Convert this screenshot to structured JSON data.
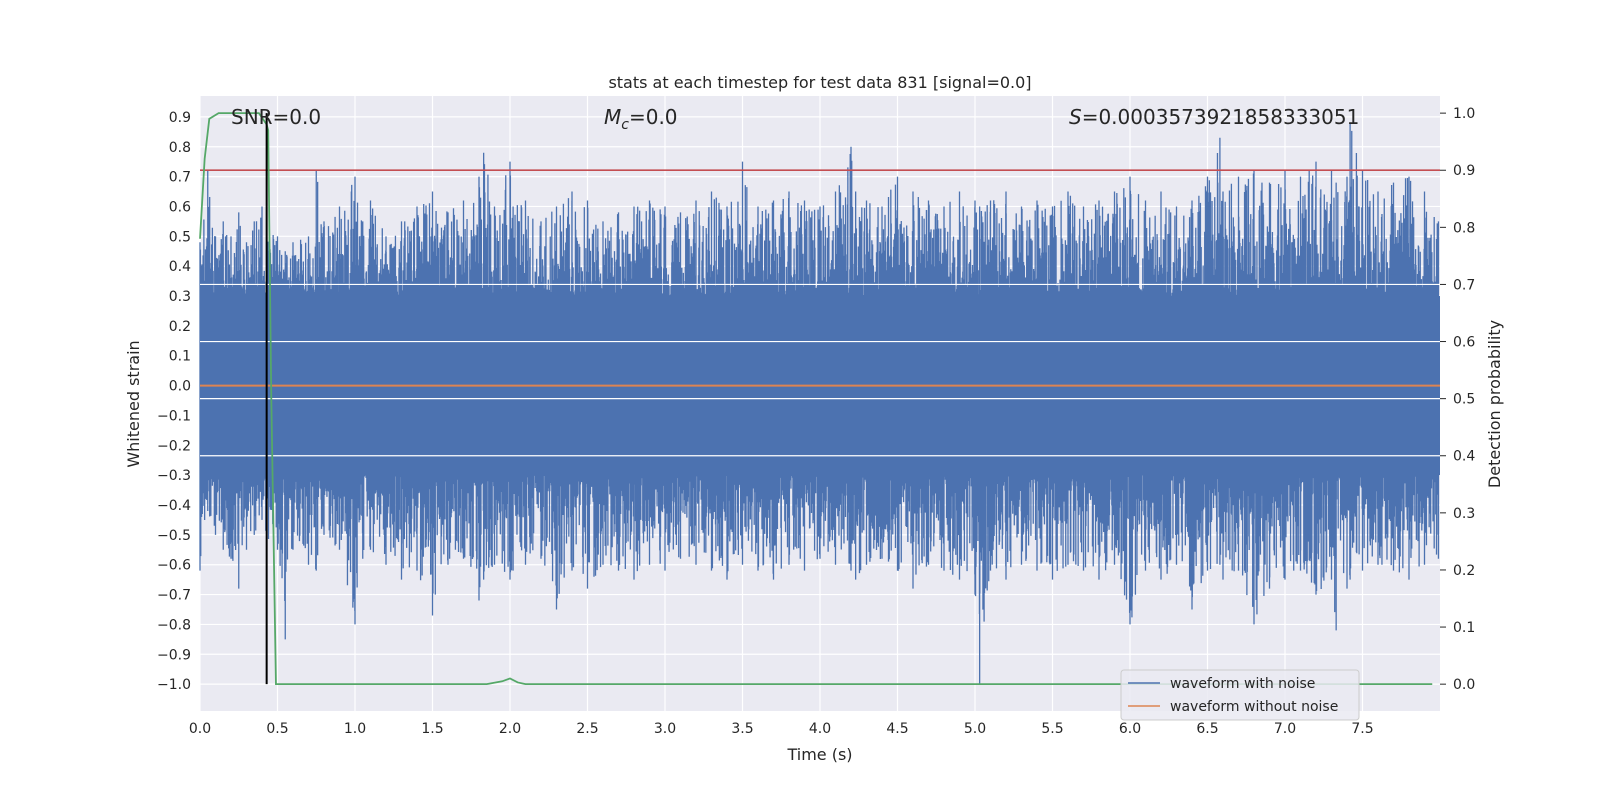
{
  "chart_data": {
    "type": "line",
    "title": "stats at each timestep for test data 831 [signal=0.0]",
    "xlabel": "Time (s)",
    "ylabel": "Whitened strain",
    "y2label": "Detection probability",
    "xlim": [
      0.0,
      8.0
    ],
    "ylim": [
      -1.09,
      0.97
    ],
    "y2lim": [
      -0.047,
      1.03
    ],
    "grid": true,
    "legend_position": "lower-right",
    "x_ticks": [
      "0.0",
      "0.5",
      "1.0",
      "1.5",
      "2.0",
      "2.5",
      "3.0",
      "3.5",
      "4.0",
      "4.5",
      "5.0",
      "5.5",
      "6.0",
      "6.5",
      "7.0",
      "7.5"
    ],
    "y_ticks": [
      "0.9",
      "0.8",
      "0.7",
      "0.6",
      "0.5",
      "0.4",
      "0.3",
      "0.2",
      "0.1",
      "0.0",
      "−0.1",
      "−0.2",
      "−0.3",
      "−0.4",
      "−0.5",
      "−0.6",
      "−0.7",
      "−0.8",
      "−0.9",
      "−1.0"
    ],
    "y2_ticks": [
      "1.0",
      "0.9",
      "0.8",
      "0.7",
      "0.6",
      "0.5",
      "0.4",
      "0.3",
      "0.2",
      "0.1",
      "0.0"
    ],
    "annotations": {
      "snr": "SNR=0.0",
      "mc_symbol": "M",
      "mc_sub": "c",
      "mc_value": "=0.0",
      "s_symbol": "S",
      "s_value": "=0.0003573921858333051"
    },
    "series": [
      {
        "name": "waveform with noise",
        "color": "#4c72b0",
        "axis": "left",
        "envelope": {
          "x": [
            0.0,
            0.05,
            0.1,
            0.15,
            0.2,
            0.25,
            0.3,
            0.35,
            0.4,
            0.43,
            0.5,
            0.55,
            0.6,
            0.7,
            0.75,
            0.8,
            0.9,
            1.0,
            1.05,
            1.1,
            1.2,
            1.3,
            1.4,
            1.5,
            1.6,
            1.7,
            1.8,
            1.83,
            1.9,
            2.0,
            2.02,
            2.1,
            2.2,
            2.3,
            2.4,
            2.5,
            2.6,
            2.7,
            2.8,
            2.9,
            3.0,
            3.1,
            3.2,
            3.3,
            3.4,
            3.5,
            3.6,
            3.7,
            3.8,
            3.9,
            4.0,
            4.1,
            4.2,
            4.23,
            4.3,
            4.4,
            4.5,
            4.6,
            4.7,
            4.8,
            4.9,
            5.0,
            5.03,
            5.1,
            5.2,
            5.3,
            5.4,
            5.5,
            5.6,
            5.7,
            5.8,
            5.9,
            6.0,
            6.1,
            6.2,
            6.3,
            6.4,
            6.5,
            6.58,
            6.6,
            6.7,
            6.8,
            6.9,
            7.0,
            7.1,
            7.2,
            7.3,
            7.33,
            7.4,
            7.42,
            7.5,
            7.6,
            7.7,
            7.8,
            7.9,
            7.99
          ],
          "y_max": [
            0.48,
            0.72,
            0.5,
            0.55,
            0.5,
            0.58,
            0.48,
            0.55,
            0.6,
            0.52,
            0.5,
            0.45,
            0.48,
            0.5,
            0.72,
            0.55,
            0.6,
            0.7,
            0.55,
            0.62,
            0.5,
            0.55,
            0.6,
            0.65,
            0.58,
            0.62,
            0.7,
            0.78,
            0.6,
            0.75,
            0.6,
            0.62,
            0.55,
            0.6,
            0.65,
            0.62,
            0.55,
            0.58,
            0.6,
            0.62,
            0.6,
            0.58,
            0.62,
            0.65,
            0.6,
            0.75,
            0.6,
            0.62,
            0.65,
            0.62,
            0.6,
            0.65,
            0.8,
            0.65,
            0.62,
            0.6,
            0.7,
            0.65,
            0.62,
            0.6,
            0.65,
            0.62,
            0.6,
            0.62,
            0.65,
            0.6,
            0.62,
            0.6,
            0.65,
            0.6,
            0.62,
            0.65,
            0.7,
            0.62,
            0.65,
            0.6,
            0.62,
            0.7,
            0.83,
            0.65,
            0.7,
            0.72,
            0.68,
            0.72,
            0.7,
            0.75,
            0.72,
            0.68,
            0.7,
            0.88,
            0.72,
            0.65,
            0.68,
            0.7,
            0.65,
            0.55
          ],
          "y_min": [
            -0.62,
            -0.42,
            -0.5,
            -0.55,
            -0.58,
            -0.68,
            -0.55,
            -0.5,
            -0.45,
            -0.52,
            -0.55,
            -0.85,
            -0.55,
            -0.6,
            -0.62,
            -0.5,
            -0.55,
            -0.8,
            -0.58,
            -0.55,
            -0.6,
            -0.65,
            -0.62,
            -0.77,
            -0.6,
            -0.58,
            -0.72,
            -0.65,
            -0.6,
            -0.65,
            -0.62,
            -0.6,
            -0.58,
            -0.75,
            -0.62,
            -0.68,
            -0.6,
            -0.62,
            -0.65,
            -0.6,
            -0.62,
            -0.58,
            -0.6,
            -0.62,
            -0.65,
            -0.6,
            -0.62,
            -0.65,
            -0.6,
            -0.62,
            -0.58,
            -0.6,
            -0.62,
            -0.65,
            -0.6,
            -0.58,
            -0.62,
            -0.68,
            -0.6,
            -0.62,
            -0.65,
            -0.7,
            -1.0,
            -0.62,
            -0.65,
            -0.6,
            -0.62,
            -0.65,
            -0.6,
            -0.62,
            -0.65,
            -0.6,
            -0.8,
            -0.62,
            -0.65,
            -0.6,
            -0.75,
            -0.62,
            -0.6,
            -0.65,
            -0.62,
            -0.8,
            -0.68,
            -0.65,
            -0.62,
            -0.7,
            -0.65,
            -0.82,
            -0.68,
            -0.65,
            -0.62,
            -0.6,
            -0.62,
            -0.65,
            -0.6,
            -0.58
          ],
          "core_amplitude": 0.3
        }
      },
      {
        "name": "waveform without noise",
        "color": "#dd8452",
        "axis": "left",
        "x": [
          0.0,
          8.0
        ],
        "y": [
          0.0,
          0.0
        ]
      },
      {
        "name": "detection probability",
        "color": "#55a868",
        "axis": "right",
        "x": [
          0.0,
          0.03,
          0.06,
          0.12,
          0.2,
          0.3,
          0.38,
          0.43,
          0.44,
          0.46,
          0.49,
          0.6,
          1.0,
          1.5,
          1.85,
          1.95,
          2.0,
          2.05,
          2.1,
          3.0,
          4.0,
          5.0,
          6.0,
          7.0,
          7.95
        ],
        "y": [
          0.78,
          0.92,
          0.99,
          1.0,
          1.0,
          1.0,
          1.0,
          0.98,
          0.97,
          0.5,
          0.0,
          0.0,
          0.0,
          0.0,
          0.0,
          0.005,
          0.01,
          0.003,
          0.0,
          0.0,
          0.0,
          0.0,
          0.0,
          0.0,
          0.0
        ]
      }
    ],
    "threshold": {
      "value": 0.9,
      "axis": "right",
      "color": "#c44e52"
    },
    "marker_line": {
      "x": 0.43,
      "y_from": 0.0,
      "y_to": 1.0,
      "axis": "right",
      "color": "#000000"
    },
    "legend": [
      {
        "label": "waveform with noise",
        "color": "#4c72b0"
      },
      {
        "label": "waveform without noise",
        "color": "#dd8452"
      }
    ]
  }
}
